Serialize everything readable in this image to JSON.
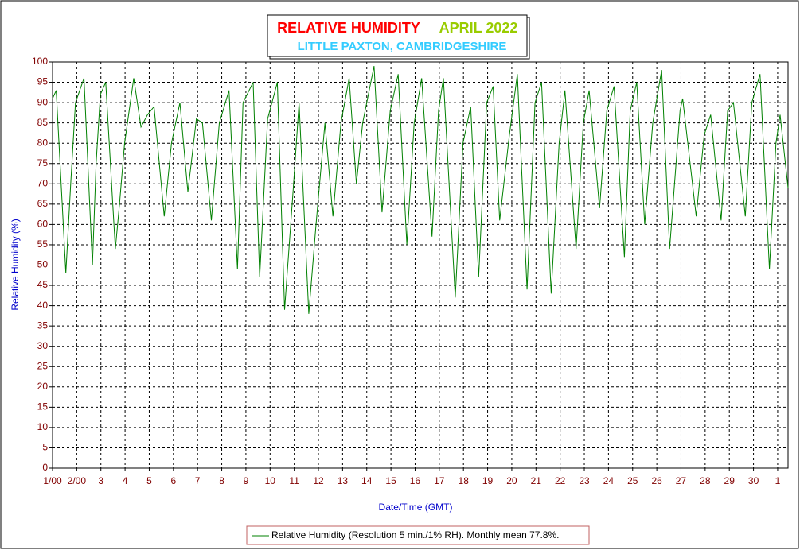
{
  "chart_data": {
    "type": "line",
    "title": "RELATIVE HUMIDITY",
    "period": "APRIL 2022",
    "subtitle": "LITTLE PAXTON, CAMBRIDGESHIRE",
    "x_label": "Date/Time (GMT)",
    "y_label": "Relative Humidity (%)",
    "grid": true,
    "xlim": [
      1,
      31.43
    ],
    "ylim": [
      0,
      100
    ],
    "xticks": [
      {
        "value": 1,
        "label": "1/00"
      },
      {
        "value": 2,
        "label": "2/00"
      },
      3,
      4,
      5,
      6,
      7,
      8,
      9,
      10,
      11,
      12,
      13,
      14,
      15,
      16,
      17,
      18,
      19,
      20,
      21,
      22,
      23,
      24,
      25,
      26,
      27,
      28,
      29,
      30,
      {
        "value": 31,
        "label": "1"
      }
    ],
    "yticks": [
      0,
      5,
      10,
      15,
      20,
      25,
      30,
      35,
      40,
      45,
      50,
      55,
      60,
      65,
      70,
      75,
      80,
      85,
      90,
      95,
      100
    ],
    "x": [
      1.0,
      1.15,
      1.55,
      1.75,
      1.95,
      2.3,
      2.65,
      2.8,
      2.98,
      3.2,
      3.6,
      3.77,
      3.98,
      4.36,
      4.66,
      4.93,
      5.2,
      5.62,
      5.92,
      6.27,
      6.6,
      6.95,
      7.2,
      7.57,
      7.9,
      8.3,
      8.65,
      8.88,
      9.3,
      9.57,
      9.9,
      10.3,
      10.6,
      10.95,
      11.2,
      11.6,
      11.9,
      12.27,
      12.6,
      12.93,
      13.27,
      13.57,
      13.83,
      14.3,
      14.63,
      14.97,
      15.3,
      15.66,
      15.96,
      16.27,
      16.7,
      16.97,
      17.17,
      17.66,
      17.98,
      18.3,
      18.63,
      18.96,
      19.23,
      19.5,
      19.9,
      20.23,
      20.63,
      20.96,
      21.23,
      21.63,
      21.96,
      22.2,
      22.66,
      22.96,
      23.2,
      23.63,
      23.93,
      24.23,
      24.66,
      24.9,
      25.17,
      25.5,
      25.83,
      26.2,
      26.53,
      26.96,
      27.07,
      27.63,
      27.96,
      28.23,
      28.66,
      28.93,
      29.17,
      29.66,
      29.93,
      30.27,
      30.66,
      30.93,
      31.1,
      31.43
    ],
    "series": [
      {
        "name": "Relative Humidity (Resolution 5 min./1% RH). Monthly mean 77.8%.",
        "color": "#008000",
        "values": [
          91,
          93,
          48,
          70,
          90,
          96,
          50,
          75,
          92,
          95,
          54,
          65,
          80,
          96,
          84,
          87,
          89,
          62,
          80,
          90,
          68,
          86,
          85,
          61,
          85,
          93,
          49,
          90,
          95,
          47,
          86,
          95,
          39,
          68,
          90,
          38,
          60,
          85,
          62,
          85,
          96,
          70,
          85,
          99,
          63,
          88,
          97,
          55,
          85,
          96,
          57,
          88,
          96,
          42,
          80,
          89,
          47,
          90,
          94,
          61,
          82,
          97,
          44,
          90,
          95,
          43,
          80,
          93,
          54,
          85,
          93,
          64,
          88,
          94,
          52,
          88,
          95,
          60,
          85,
          98,
          54,
          88,
          91,
          62,
          82,
          87,
          61,
          88,
          90,
          62,
          90,
          97,
          49,
          80,
          87,
          69
        ]
      }
    ]
  }
}
